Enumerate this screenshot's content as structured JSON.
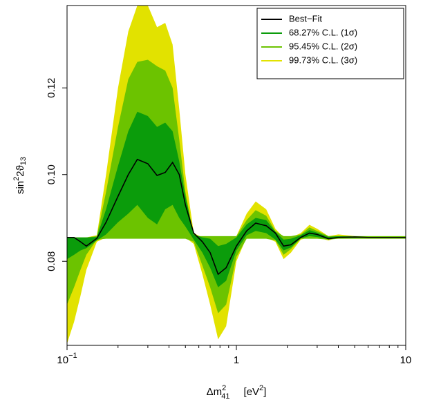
{
  "chart_data": {
    "type": "band",
    "xlabel": {
      "base": "Δm",
      "sup": "2",
      "sub": "41",
      "unit": "[eV",
      "unit_sup": "2",
      "unit_end": "]"
    },
    "ylabel": {
      "text1": "sin",
      "sup": "2",
      "text2": "2ϑ",
      "sub": "13"
    },
    "xlog": true,
    "xlim": [
      0.1,
      10
    ],
    "ylim": [
      0.0606,
      0.139
    ],
    "xticks": [
      {
        "value": 0.1,
        "label": "10",
        "exponent": "−1"
      },
      1,
      10
    ],
    "xminor_ticks": [
      0.2,
      0.3,
      0.4,
      0.5,
      0.6,
      0.7,
      0.8,
      0.9,
      2,
      3,
      4,
      5,
      6,
      7,
      8,
      9
    ],
    "yticks": [
      0.08,
      {
        "value": 0.1,
        "label": "0.10"
      },
      0.12
    ],
    "legend": "upper right",
    "x": [
      0.1,
      0.11,
      0.12,
      0.13,
      0.15,
      0.17,
      0.2,
      0.23,
      0.26,
      0.3,
      0.34,
      0.38,
      0.42,
      0.46,
      0.5,
      0.56,
      0.63,
      0.7,
      0.78,
      0.87,
      1.0,
      1.15,
      1.3,
      1.5,
      1.7,
      1.9,
      2.1,
      2.4,
      2.7,
      3.0,
      3.5,
      4,
      5,
      6,
      8,
      10
    ],
    "bands": [
      {
        "name": "99.73% C.L. (3σ)",
        "color": "#e2e200",
        "lower": [
          0.061,
          0.066,
          0.072,
          0.078,
          0.0845,
          0.0855,
          0.0855,
          0.0855,
          0.0855,
          0.0855,
          0.0855,
          0.0855,
          0.0855,
          0.0855,
          0.0855,
          0.084,
          0.077,
          0.07,
          0.062,
          0.065,
          0.08,
          0.0855,
          0.0855,
          0.0855,
          0.0845,
          0.0805,
          0.082,
          0.085,
          0.0855,
          0.0855,
          0.0848,
          0.0855,
          0.0853,
          0.0855,
          0.0855,
          0.0855
        ],
        "upper": [
          0.0855,
          0.0855,
          0.0855,
          0.0855,
          0.086,
          0.1,
          0.12,
          0.133,
          0.139,
          0.139,
          0.134,
          0.135,
          0.13,
          0.115,
          0.1,
          0.0865,
          0.0855,
          0.0855,
          0.0855,
          0.0855,
          0.0858,
          0.091,
          0.0938,
          0.092,
          0.0875,
          0.0855,
          0.0855,
          0.0865,
          0.0884,
          0.0875,
          0.0858,
          0.0862,
          0.0858,
          0.0857,
          0.0856,
          0.0856
        ]
      },
      {
        "name": "95.45% C.L. (2σ)",
        "color": "#6cc300",
        "lower": [
          0.07,
          0.074,
          0.078,
          0.0815,
          0.085,
          0.0852,
          0.0852,
          0.0852,
          0.0852,
          0.0852,
          0.0852,
          0.0852,
          0.0852,
          0.0852,
          0.0852,
          0.0845,
          0.079,
          0.074,
          0.068,
          0.07,
          0.081,
          0.0852,
          0.0852,
          0.0852,
          0.0848,
          0.0815,
          0.0828,
          0.0852,
          0.0852,
          0.0852,
          0.085,
          0.0852,
          0.0852,
          0.0852,
          0.0852,
          0.0852
        ],
        "upper": [
          0.0855,
          0.0855,
          0.0855,
          0.0855,
          0.0858,
          0.096,
          0.111,
          0.122,
          0.126,
          0.1265,
          0.125,
          0.124,
          0.12,
          0.108,
          0.096,
          0.0858,
          0.0858,
          0.0858,
          0.0858,
          0.0858,
          0.0858,
          0.0895,
          0.0918,
          0.0905,
          0.087,
          0.0858,
          0.0858,
          0.0862,
          0.0878,
          0.087,
          0.0858,
          0.0858,
          0.0858,
          0.0858,
          0.0858,
          0.0858
        ]
      },
      {
        "name": "68.27% C.L. (1σ)",
        "color": "#0b9c0b",
        "lower": [
          0.0805,
          0.0815,
          0.0825,
          0.083,
          0.0848,
          0.0862,
          0.089,
          0.091,
          0.093,
          0.09,
          0.0885,
          0.092,
          0.093,
          0.09,
          0.088,
          0.085,
          0.082,
          0.0785,
          0.074,
          0.0755,
          0.0825,
          0.086,
          0.087,
          0.0865,
          0.085,
          0.0825,
          0.0832,
          0.0853,
          0.0858,
          0.0856,
          0.0851,
          0.0854,
          0.0854,
          0.0855,
          0.0855,
          0.0855
        ],
        "upper": [
          0.0855,
          0.0855,
          0.0855,
          0.0855,
          0.0856,
          0.092,
          0.102,
          0.11,
          0.1145,
          0.1135,
          0.111,
          0.112,
          0.11,
          0.103,
          0.095,
          0.0862,
          0.0855,
          0.0852,
          0.0835,
          0.084,
          0.0855,
          0.0885,
          0.09,
          0.0895,
          0.0868,
          0.085,
          0.0852,
          0.086,
          0.0872,
          0.0866,
          0.0856,
          0.0858,
          0.0857,
          0.0856,
          0.0856,
          0.0856
        ]
      }
    ],
    "series": [
      {
        "name": "Best−Fit",
        "color": "#000000",
        "values": [
          0.0855,
          0.0855,
          0.0845,
          0.0835,
          0.0853,
          0.089,
          0.095,
          0.1,
          0.1035,
          0.1025,
          0.0998,
          0.1005,
          0.1028,
          0.1,
          0.093,
          0.0865,
          0.0845,
          0.082,
          0.077,
          0.0785,
          0.0835,
          0.087,
          0.0888,
          0.0882,
          0.0865,
          0.0835,
          0.0838,
          0.0855,
          0.0865,
          0.0862,
          0.0852,
          0.0855,
          0.0856,
          0.0855,
          0.0855,
          0.0855
        ]
      }
    ]
  }
}
